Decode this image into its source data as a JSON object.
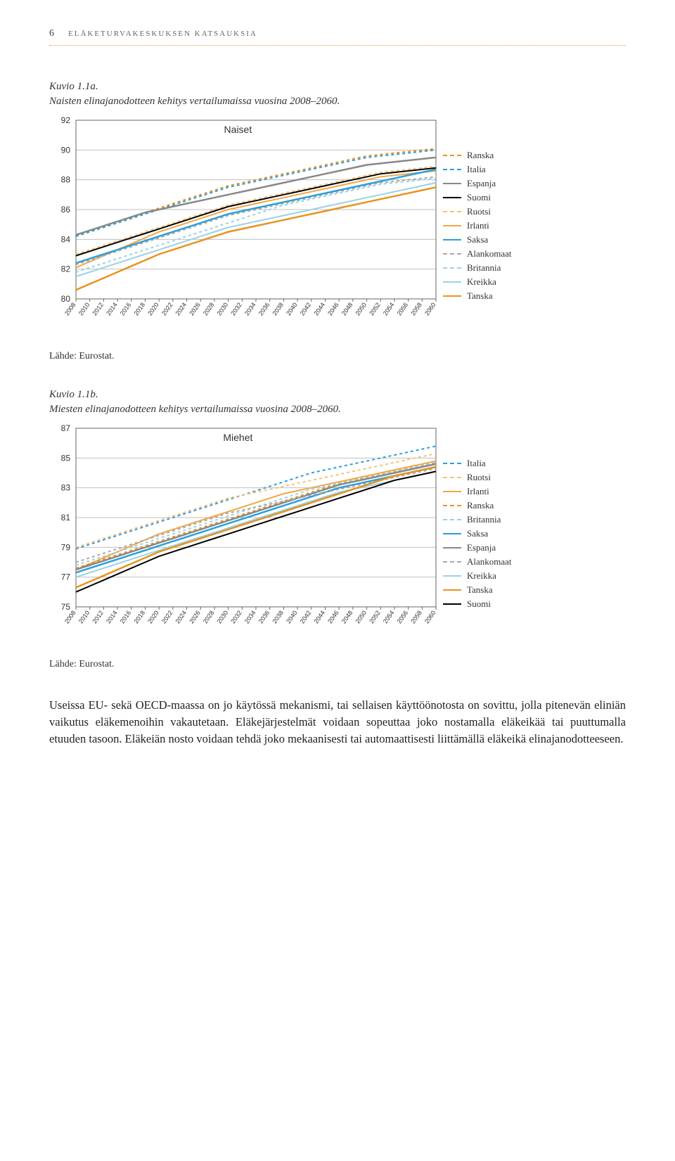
{
  "header": {
    "page_number": "6",
    "running_title": "ELÄKETURVAKESKUKSEN KATSAUKSIA"
  },
  "figure_a": {
    "caption_title": "Kuvio 1.1a.",
    "caption_sub": "Naisten elinajanodotteen kehitys vertailumaissa vuosina 2008–2060.",
    "inner_title": "Naiset",
    "source": "Lähde: Eurostat.",
    "chart": {
      "type": "line",
      "x_years": [
        2008,
        2010,
        2012,
        2014,
        2016,
        2018,
        2020,
        2022,
        2024,
        2026,
        2028,
        2030,
        2032,
        2034,
        2036,
        2038,
        2040,
        2042,
        2044,
        2046,
        2048,
        2050,
        2052,
        2054,
        2056,
        2058,
        2060
      ],
      "ylim": [
        80,
        92
      ],
      "ytick_step": 2,
      "background_color": "#ffffff",
      "grid_color": "#c0c0c0",
      "axis_color": "#666666",
      "label_fontsize": 9,
      "title_fontsize": 14,
      "series": [
        {
          "label": "Ranska",
          "color": "#e8931f",
          "dash": "4,4",
          "width": 2,
          "y": [
            84.3,
            84.6,
            84.9,
            85.2,
            85.5,
            85.8,
            86.1,
            86.4,
            86.7,
            87.0,
            87.3,
            87.6,
            87.8,
            88.0,
            88.2,
            88.4,
            88.6,
            88.8,
            89.0,
            89.2,
            89.4,
            89.6,
            89.7,
            89.8,
            89.9,
            90.0,
            90.1
          ]
        },
        {
          "label": "Italia",
          "color": "#2b9fd9",
          "dash": "4,4",
          "width": 2,
          "y": [
            84.2,
            84.5,
            84.8,
            85.1,
            85.4,
            85.7,
            86.0,
            86.3,
            86.6,
            86.9,
            87.2,
            87.5,
            87.7,
            87.9,
            88.1,
            88.3,
            88.5,
            88.7,
            88.9,
            89.1,
            89.3,
            89.5,
            89.6,
            89.7,
            89.8,
            89.9,
            90.0
          ]
        },
        {
          "label": "Espanja",
          "color": "#888888",
          "dash": "none",
          "width": 2.5,
          "y": [
            84.3,
            84.6,
            84.9,
            85.2,
            85.5,
            85.8,
            86.0,
            86.2,
            86.4,
            86.6,
            86.8,
            87.0,
            87.2,
            87.4,
            87.6,
            87.8,
            88.0,
            88.2,
            88.4,
            88.6,
            88.8,
            89.0,
            89.1,
            89.2,
            89.3,
            89.4,
            89.5
          ]
        },
        {
          "label": "Suomi",
          "color": "#000000",
          "dash": "none",
          "width": 2,
          "y": [
            82.9,
            83.2,
            83.5,
            83.8,
            84.1,
            84.4,
            84.7,
            85.0,
            85.3,
            85.6,
            85.9,
            86.2,
            86.4,
            86.6,
            86.8,
            87.0,
            87.2,
            87.4,
            87.6,
            87.8,
            88.0,
            88.2,
            88.4,
            88.5,
            88.6,
            88.7,
            88.8
          ]
        },
        {
          "label": "Ruotsi",
          "color": "#f4c27a",
          "dash": "4,4",
          "width": 2,
          "y": [
            83.0,
            83.3,
            83.6,
            83.9,
            84.2,
            84.5,
            84.8,
            85.1,
            85.4,
            85.7,
            86.0,
            86.3,
            86.5,
            86.7,
            86.9,
            87.1,
            87.3,
            87.5,
            87.7,
            87.9,
            88.1,
            88.3,
            88.5,
            88.6,
            88.7,
            88.8,
            88.9
          ]
        },
        {
          "label": "Irlanti",
          "color": "#f2a643",
          "dash": "none",
          "width": 2,
          "y": [
            82.1,
            82.5,
            82.9,
            83.3,
            83.7,
            84.1,
            84.5,
            84.8,
            85.1,
            85.4,
            85.7,
            86.0,
            86.2,
            86.4,
            86.6,
            86.8,
            87.0,
            87.2,
            87.4,
            87.6,
            87.8,
            88.0,
            88.2,
            88.3,
            88.4,
            88.5,
            88.6
          ]
        },
        {
          "label": "Saksa",
          "color": "#2b9fd9",
          "dash": "none",
          "width": 2.5,
          "y": [
            82.4,
            82.7,
            83.0,
            83.3,
            83.6,
            83.9,
            84.2,
            84.5,
            84.8,
            85.1,
            85.4,
            85.7,
            85.9,
            86.1,
            86.3,
            86.5,
            86.7,
            86.9,
            87.1,
            87.3,
            87.5,
            87.7,
            87.9,
            88.1,
            88.3,
            88.5,
            88.7
          ]
        },
        {
          "label": "Alankomaat",
          "color": "#a9a9a9",
          "dash": "4,4",
          "width": 2,
          "y": [
            82.3,
            82.6,
            82.9,
            83.2,
            83.5,
            83.8,
            84.1,
            84.4,
            84.7,
            85.0,
            85.3,
            85.6,
            85.8,
            86.0,
            86.2,
            86.4,
            86.6,
            86.8,
            87.0,
            87.2,
            87.4,
            87.6,
            87.8,
            87.9,
            88.0,
            88.1,
            88.2
          ]
        },
        {
          "label": "Britannia",
          "color": "#9bd1e8",
          "dash": "4,4",
          "width": 2,
          "y": [
            81.8,
            82.1,
            82.4,
            82.7,
            83.0,
            83.3,
            83.6,
            83.9,
            84.2,
            84.5,
            84.8,
            85.1,
            85.4,
            85.7,
            86.0,
            86.3,
            86.5,
            86.7,
            86.9,
            87.1,
            87.3,
            87.5,
            87.7,
            87.8,
            87.9,
            88.0,
            88.1
          ]
        },
        {
          "label": "Kreikka",
          "color": "#9bd1e8",
          "dash": "none",
          "width": 2,
          "y": [
            81.5,
            81.8,
            82.1,
            82.4,
            82.7,
            83.0,
            83.3,
            83.6,
            83.9,
            84.2,
            84.5,
            84.8,
            85.0,
            85.2,
            85.4,
            85.6,
            85.8,
            86.0,
            86.2,
            86.4,
            86.6,
            86.8,
            87.0,
            87.2,
            87.4,
            87.6,
            87.8
          ]
        },
        {
          "label": "Tanska",
          "color": "#e8931f",
          "dash": "none",
          "width": 2.5,
          "y": [
            80.6,
            81.0,
            81.4,
            81.8,
            82.2,
            82.6,
            83.0,
            83.3,
            83.6,
            83.9,
            84.2,
            84.5,
            84.7,
            84.9,
            85.1,
            85.3,
            85.5,
            85.7,
            85.9,
            86.1,
            86.3,
            86.5,
            86.7,
            86.9,
            87.1,
            87.3,
            87.5
          ]
        }
      ]
    }
  },
  "figure_b": {
    "caption_title": "Kuvio 1.1b.",
    "caption_sub": "Miesten elinajanodotteen kehitys vertailumaissa vuosina 2008–2060.",
    "inner_title": "Miehet",
    "source": "Lähde: Eurostat.",
    "chart": {
      "type": "line",
      "x_years": [
        2008,
        2010,
        2012,
        2014,
        2016,
        2018,
        2020,
        2022,
        2024,
        2026,
        2028,
        2030,
        2032,
        2034,
        2036,
        2038,
        2040,
        2042,
        2044,
        2046,
        2048,
        2050,
        2052,
        2054,
        2056,
        2058,
        2060
      ],
      "ylim": [
        75,
        87
      ],
      "ytick_step": 2,
      "background_color": "#ffffff",
      "grid_color": "#c0c0c0",
      "axis_color": "#666666",
      "label_fontsize": 9,
      "title_fontsize": 14,
      "series": [
        {
          "label": "Italia",
          "color": "#2b9fd9",
          "dash": "4,4",
          "width": 2,
          "y": [
            78.9,
            79.2,
            79.5,
            79.8,
            80.1,
            80.4,
            80.7,
            81.0,
            81.3,
            81.6,
            81.9,
            82.2,
            82.5,
            82.8,
            83.1,
            83.4,
            83.7,
            84.0,
            84.2,
            84.4,
            84.6,
            84.8,
            85.0,
            85.2,
            85.4,
            85.6,
            85.8
          ]
        },
        {
          "label": "Ruotsi",
          "color": "#f4c27a",
          "dash": "4,4",
          "width": 2,
          "y": [
            79.0,
            79.3,
            79.6,
            79.9,
            80.2,
            80.5,
            80.8,
            81.1,
            81.4,
            81.7,
            82.0,
            82.3,
            82.5,
            82.7,
            82.9,
            83.1,
            83.3,
            83.5,
            83.7,
            83.9,
            84.1,
            84.3,
            84.5,
            84.7,
            84.9,
            85.1,
            85.3
          ]
        },
        {
          "label": "Irlanti",
          "color": "#f2a643",
          "dash": "none",
          "width": 2,
          "y": [
            77.5,
            77.9,
            78.3,
            78.7,
            79.1,
            79.5,
            79.9,
            80.2,
            80.5,
            80.8,
            81.1,
            81.4,
            81.7,
            82.0,
            82.3,
            82.6,
            82.8,
            83.0,
            83.2,
            83.4,
            83.6,
            83.8,
            84.0,
            84.2,
            84.4,
            84.6,
            84.8
          ]
        },
        {
          "label": "Ranska",
          "color": "#e8931f",
          "dash": "4,4",
          "width": 2,
          "y": [
            77.6,
            77.9,
            78.2,
            78.5,
            78.8,
            79.1,
            79.4,
            79.7,
            80.0,
            80.3,
            80.6,
            80.9,
            81.2,
            81.5,
            81.8,
            82.1,
            82.4,
            82.7,
            83.0,
            83.3,
            83.5,
            83.7,
            83.9,
            84.1,
            84.3,
            84.5,
            84.7
          ]
        },
        {
          "label": "Britannia",
          "color": "#9bd1e8",
          "dash": "4,4",
          "width": 2,
          "y": [
            77.8,
            78.1,
            78.4,
            78.7,
            79.0,
            79.3,
            79.6,
            79.9,
            80.2,
            80.5,
            80.8,
            81.1,
            81.4,
            81.7,
            82.0,
            82.3,
            82.6,
            82.9,
            83.1,
            83.3,
            83.5,
            83.7,
            83.9,
            84.1,
            84.3,
            84.5,
            84.7
          ]
        },
        {
          "label": "Saksa",
          "color": "#2b9fd9",
          "dash": "none",
          "width": 2.5,
          "y": [
            77.3,
            77.6,
            77.9,
            78.2,
            78.5,
            78.8,
            79.1,
            79.4,
            79.7,
            80.0,
            80.3,
            80.6,
            80.9,
            81.2,
            81.5,
            81.8,
            82.1,
            82.4,
            82.7,
            83.0,
            83.2,
            83.4,
            83.6,
            83.8,
            84.0,
            84.2,
            84.4
          ]
        },
        {
          "label": "Espanja",
          "color": "#888888",
          "dash": "none",
          "width": 2.5,
          "y": [
            77.5,
            77.8,
            78.1,
            78.4,
            78.7,
            79.0,
            79.3,
            79.6,
            79.9,
            80.2,
            80.5,
            80.8,
            81.1,
            81.4,
            81.7,
            82.0,
            82.3,
            82.6,
            82.9,
            83.2,
            83.4,
            83.6,
            83.8,
            84.0,
            84.2,
            84.4,
            84.6
          ]
        },
        {
          "label": "Alankomaat",
          "color": "#a9a9a9",
          "dash": "4,4",
          "width": 2,
          "y": [
            78.0,
            78.3,
            78.6,
            78.9,
            79.2,
            79.5,
            79.8,
            80.1,
            80.4,
            80.7,
            81.0,
            81.3,
            81.5,
            81.7,
            81.9,
            82.1,
            82.3,
            82.5,
            82.7,
            82.9,
            83.1,
            83.3,
            83.5,
            83.7,
            83.9,
            84.1,
            84.3
          ]
        },
        {
          "label": "Kreikka",
          "color": "#9bd1e8",
          "dash": "none",
          "width": 2,
          "y": [
            77.0,
            77.3,
            77.6,
            77.9,
            78.2,
            78.5,
            78.8,
            79.1,
            79.4,
            79.7,
            80.0,
            80.3,
            80.6,
            80.9,
            81.2,
            81.5,
            81.8,
            82.1,
            82.4,
            82.7,
            82.9,
            83.1,
            83.3,
            83.5,
            83.7,
            83.9,
            84.1
          ]
        },
        {
          "label": "Tanska",
          "color": "#e8931f",
          "dash": "none",
          "width": 2.5,
          "y": [
            76.3,
            76.7,
            77.1,
            77.5,
            77.9,
            78.3,
            78.7,
            79.0,
            79.3,
            79.6,
            79.9,
            80.2,
            80.5,
            80.8,
            81.1,
            81.4,
            81.7,
            82.0,
            82.3,
            82.6,
            82.9,
            83.2,
            83.5,
            83.8,
            84.0,
            84.2,
            84.4
          ]
        },
        {
          "label": "Suomi",
          "color": "#000000",
          "dash": "none",
          "width": 2,
          "y": [
            76.0,
            76.4,
            76.8,
            77.2,
            77.6,
            78.0,
            78.4,
            78.7,
            79.0,
            79.3,
            79.6,
            79.9,
            80.2,
            80.5,
            80.8,
            81.1,
            81.4,
            81.7,
            82.0,
            82.3,
            82.6,
            82.9,
            83.2,
            83.5,
            83.7,
            83.9,
            84.1
          ]
        }
      ]
    }
  },
  "body_text": "Useissa EU- sekä OECD-maassa on jo käytössä mekanismi, tai sellaisen käyttöönotosta on sovittu, jolla pitenevän eliniän vaikutus eläkemenoihin vakautetaan. Eläkejärjestelmät voidaan sopeuttaa joko nostamalla eläkeikää tai puuttumalla etuuden tasoon. Eläkeiän nosto voidaan tehdä joko mekaanisesti tai automaattisesti liittämällä eläkeikä elinajanodotteeseen."
}
